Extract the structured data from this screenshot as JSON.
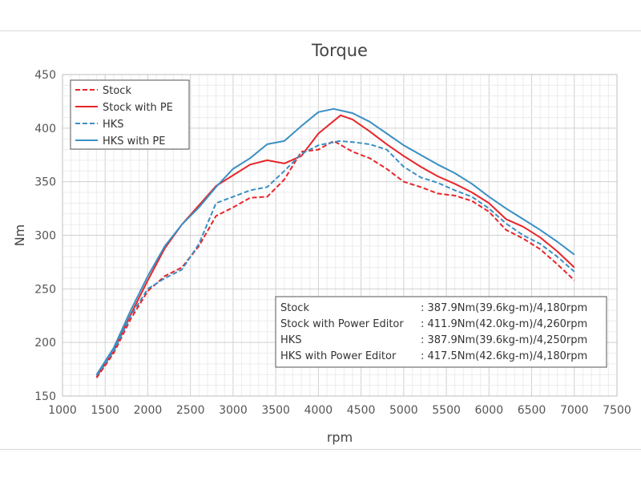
{
  "chart_data": {
    "type": "line",
    "title": "Torque",
    "xlabel": "rpm",
    "ylabel": "Nm",
    "xlim": [
      1000,
      7500
    ],
    "ylim": [
      150,
      450
    ],
    "xticks": [
      "1000",
      "1500",
      "2000",
      "2500",
      "3000",
      "3500",
      "4000",
      "4500",
      "5000",
      "5500",
      "6000",
      "6500",
      "7000",
      "7500"
    ],
    "yticks": [
      "150",
      "200",
      "250",
      "300",
      "350",
      "400",
      "450"
    ],
    "grid": true,
    "legend_position": "top-left",
    "series": [
      {
        "name": "Stock",
        "color": "#e8252a",
        "dash": true,
        "x": [
          1400,
          1600,
          1800,
          2000,
          2200,
          2400,
          2600,
          2800,
          3000,
          3200,
          3400,
          3600,
          3800,
          4000,
          4180,
          4400,
          4600,
          4800,
          5000,
          5200,
          5400,
          5600,
          5800,
          6000,
          6200,
          6400,
          6600,
          6800,
          7000
        ],
        "y": [
          167,
          190,
          222,
          248,
          262,
          270,
          290,
          318,
          326,
          335,
          336,
          352,
          378,
          380,
          388,
          378,
          372,
          362,
          350,
          345,
          339,
          337,
          332,
          322,
          305,
          297,
          287,
          273,
          258
        ]
      },
      {
        "name": "Stock with PE",
        "color": "#e8252a",
        "dash": false,
        "x": [
          1400,
          1600,
          1800,
          2000,
          2200,
          2400,
          2600,
          2800,
          3000,
          3200,
          3400,
          3600,
          3800,
          4000,
          4260,
          4400,
          4600,
          4800,
          5000,
          5200,
          5400,
          5600,
          5800,
          6000,
          6200,
          6400,
          6600,
          6800,
          7000
        ],
        "y": [
          168,
          192,
          226,
          258,
          288,
          310,
          328,
          346,
          356,
          366,
          370,
          367,
          374,
          395,
          412,
          408,
          397,
          385,
          374,
          364,
          355,
          348,
          340,
          330,
          315,
          308,
          298,
          285,
          270
        ]
      },
      {
        "name": "HKS",
        "color": "#3a8fc4",
        "dash": true,
        "x": [
          1400,
          1600,
          1800,
          2000,
          2200,
          2400,
          2600,
          2800,
          3000,
          3200,
          3400,
          3600,
          3800,
          4000,
          4250,
          4400,
          4600,
          4800,
          5000,
          5200,
          5400,
          5600,
          5800,
          6000,
          6200,
          6400,
          6600,
          6800,
          7000
        ],
        "y": [
          169,
          192,
          225,
          250,
          260,
          268,
          292,
          330,
          336,
          342,
          345,
          360,
          376,
          384,
          388,
          387,
          385,
          380,
          364,
          354,
          349,
          342,
          336,
          325,
          311,
          300,
          292,
          280,
          266
        ]
      },
      {
        "name": "HKS with PE",
        "color": "#3a8fc4",
        "dash": false,
        "x": [
          1400,
          1600,
          1800,
          2000,
          2200,
          2400,
          2600,
          2800,
          3000,
          3200,
          3400,
          3600,
          3800,
          4000,
          4180,
          4400,
          4600,
          4800,
          5000,
          5200,
          5400,
          5600,
          5800,
          6000,
          6200,
          6400,
          6600,
          6800,
          7000
        ],
        "y": [
          170,
          195,
          230,
          262,
          290,
          310,
          326,
          345,
          362,
          372,
          385,
          388,
          402,
          415,
          418,
          414,
          406,
          395,
          384,
          375,
          366,
          358,
          348,
          336,
          325,
          315,
          305,
          294,
          282
        ]
      }
    ],
    "summary": [
      {
        "label": "Stock",
        "value": ": 387.9Nm(39.6kg-m)/4,180rpm"
      },
      {
        "label": "Stock with Power Editor",
        "value": ": 411.9Nm(42.0kg-m)/4,260rpm"
      },
      {
        "label": "HKS",
        "value": ": 387.9Nm(39.6kg-m)/4,250rpm"
      },
      {
        "label": "HKS with Power Editor",
        "value": ": 417.5Nm(42.6kg-m)/4,180rpm"
      }
    ]
  }
}
